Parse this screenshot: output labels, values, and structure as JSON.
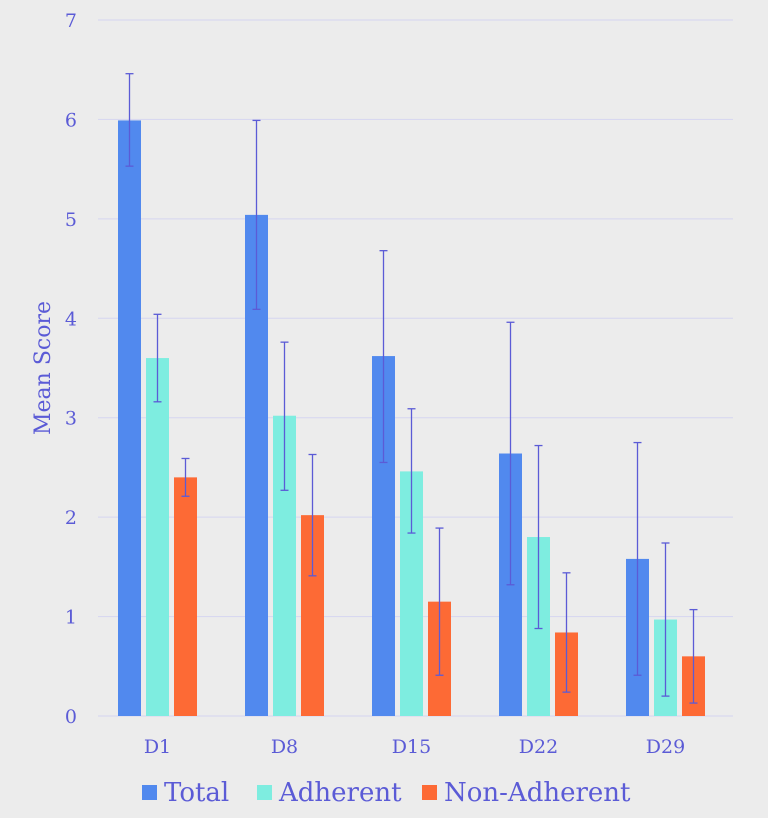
{
  "chart_data": {
    "type": "bar",
    "ylabel": "Mean Score",
    "ylim": [
      0,
      7
    ],
    "yticks": [
      0,
      1,
      2,
      3,
      4,
      5,
      6,
      7
    ],
    "grid": true,
    "legend_position": "bottom",
    "categories": [
      "D1",
      "D8",
      "D15",
      "D22",
      "D29"
    ],
    "series": [
      {
        "name": "Total",
        "color": "#5189ee",
        "values": [
          5.99,
          5.04,
          3.62,
          2.64,
          1.58
        ],
        "error_low": [
          5.53,
          4.09,
          2.55,
          1.32,
          0.41
        ],
        "error_high": [
          6.46,
          5.99,
          4.68,
          3.96,
          2.75
        ]
      },
      {
        "name": "Adherent",
        "color": "#7eede0",
        "values": [
          3.6,
          3.02,
          2.46,
          1.8,
          0.97
        ],
        "error_low": [
          3.16,
          2.27,
          1.84,
          0.88,
          0.2
        ],
        "error_high": [
          4.04,
          3.76,
          3.09,
          2.72,
          1.74
        ]
      },
      {
        "name": "Non-Adherent",
        "color": "#fd6a35",
        "values": [
          2.4,
          2.02,
          1.15,
          0.84,
          0.6
        ],
        "error_low": [
          2.21,
          1.41,
          0.41,
          0.24,
          0.13
        ],
        "error_high": [
          2.59,
          2.63,
          1.89,
          1.44,
          1.07
        ]
      }
    ],
    "gridline_color": "#d5d5f0",
    "error_bar_color": "#5b5bd6",
    "text_color": "#5b5bd6"
  }
}
